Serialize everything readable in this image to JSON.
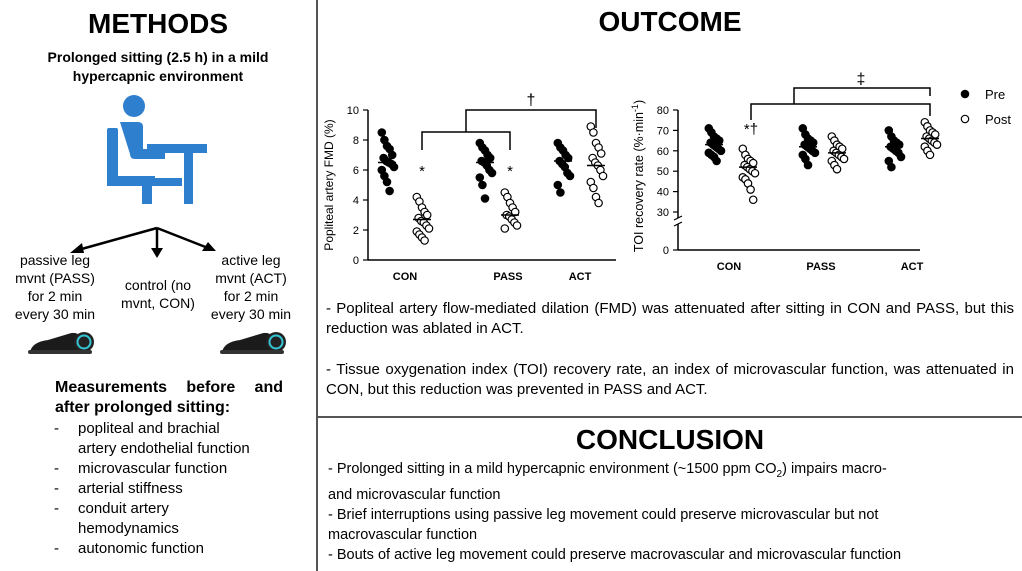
{
  "methods": {
    "title": "METHODS",
    "subtitle_line1": "Prolonged sitting (2.5 h) in a mild",
    "subtitle_line2": "hypercapnic environment",
    "icon": "person-sitting-at-desk-icon",
    "icon_color": "#2f7fcf",
    "pass": {
      "l1": "passive leg",
      "l2": "mvnt (PASS)",
      "l3": "for 2 min",
      "l4": "every 30 min"
    },
    "con": {
      "l1": "control (no",
      "l2": "mvnt, CON)"
    },
    "act": {
      "l1": "active leg",
      "l2": "mvnt (ACT)",
      "l3": "for 2 min",
      "l4": "every 30 min"
    },
    "device_icon": "leg-movement-device-icon",
    "measurements_title_line1": "Measurements before and",
    "measurements_title_line2": "after prolonged sitting:",
    "measurements": [
      [
        "popliteal and brachial",
        "artery endothelial function"
      ],
      [
        "microvascular function"
      ],
      [
        "arterial stiffness"
      ],
      [
        "conduit artery",
        "hemodynamics"
      ],
      [
        "autonomic function"
      ]
    ]
  },
  "outcome": {
    "title": "OUTCOME",
    "para1": "- Popliteal artery flow-mediated dilation (FMD) was attenuated after sitting in CON and PASS, but this reduction was ablated in ACT.",
    "para2": "- Tissue oxygenation index (TOI) recovery rate, an index of microvascular function, was attenuated in CON, but this reduction was prevented in PASS and ACT."
  },
  "conclusion": {
    "title": "CONCLUSION",
    "line1": "- Prolonged sitting in a mild hypercapnic environment (~1500 ppm CO",
    "line1_sub": "2",
    "line1_end": ") impairs macro-",
    "line2": "and microvascular function",
    "line3": "- Brief interruptions using passive leg movement could preserve microvascular but not",
    "line4": "macrovascular function",
    "line5": "- Bouts of active leg movement could preserve macrovascular and microvascular function"
  },
  "chart_data": [
    {
      "type": "scatter",
      "ylabel": "Popliteal artery FMD (%)",
      "categories": [
        "CON",
        "PASS",
        "ACT"
      ],
      "ylim": [
        0,
        10
      ],
      "yticks": [
        0,
        2,
        4,
        6,
        8,
        10
      ],
      "series": [
        {
          "name": "Pre",
          "filled": true,
          "means": [
            6.5,
            6.5,
            6.6
          ],
          "values": [
            [
              8.5,
              8.0,
              7.6,
              7.4,
              7.0,
              6.8,
              6.6,
              6.5,
              6.4,
              6.2,
              6.0,
              5.6,
              5.2,
              4.6
            ],
            [
              7.8,
              7.5,
              7.3,
              7.0,
              6.8,
              6.6,
              6.5,
              6.3,
              6.0,
              5.8,
              5.5,
              5.0,
              4.1
            ],
            [
              7.8,
              7.5,
              7.3,
              7.0,
              6.8,
              6.6,
              6.4,
              6.2,
              5.8,
              5.6,
              5.0,
              4.5
            ]
          ]
        },
        {
          "name": "Post",
          "filled": false,
          "means": [
            2.7,
            3.0,
            6.3
          ],
          "values": [
            [
              4.2,
              3.9,
              3.5,
              3.2,
              3.0,
              2.8,
              2.6,
              2.5,
              2.3,
              2.1,
              1.9,
              1.7,
              1.5,
              1.3
            ],
            [
              4.5,
              4.2,
              3.8,
              3.5,
              3.2,
              3.0,
              2.9,
              2.7,
              2.5,
              2.3,
              2.1
            ],
            [
              8.9,
              8.5,
              7.8,
              7.5,
              7.1,
              6.8,
              6.5,
              6.3,
              6.0,
              5.6,
              5.2,
              4.8,
              4.2,
              3.8
            ]
          ]
        }
      ],
      "annotations": {
        "star": "*",
        "dagger": "†"
      }
    },
    {
      "type": "scatter",
      "ylabel": "TOI recovery rate (%·min",
      "ylabel_sup": "-1",
      "ylabel_end": ")",
      "categories": [
        "CON",
        "PASS",
        "ACT"
      ],
      "ylim": [
        0,
        80
      ],
      "yticks": [
        0,
        30,
        40,
        50,
        60,
        70,
        80
      ],
      "axis_break": true,
      "series": [
        {
          "name": "Pre",
          "filled": true,
          "means": [
            63,
            62,
            62
          ],
          "values": [
            [
              71,
              69,
              67,
              66,
              65,
              64,
              63,
              62,
              61,
              60,
              59,
              58,
              57,
              55
            ],
            [
              71,
              68,
              66,
              65,
              64,
              63,
              62,
              61,
              60,
              59,
              58,
              56,
              53
            ],
            [
              70,
              67,
              65,
              64,
              63,
              62,
              61,
              60,
              59,
              57,
              55,
              52
            ]
          ]
        },
        {
          "name": "Post",
          "filled": false,
          "means": [
            52,
            59,
            66
          ],
          "values": [
            [
              61,
              58,
              56,
              55,
              54,
              53,
              52,
              51,
              50,
              49,
              47,
              46,
              44,
              41,
              36
            ],
            [
              67,
              65,
              63,
              62,
              61,
              60,
              59,
              58,
              57,
              56,
              55,
              53,
              51
            ],
            [
              74,
              72,
              70,
              69,
              68,
              67,
              66,
              65,
              64,
              63,
              62,
              60,
              58
            ]
          ]
        }
      ],
      "annotations": {
        "star_dagger": "*†",
        "double_dagger": "‡"
      },
      "legend": {
        "position": "top-right",
        "pre": "Pre",
        "post": "Post"
      }
    }
  ]
}
